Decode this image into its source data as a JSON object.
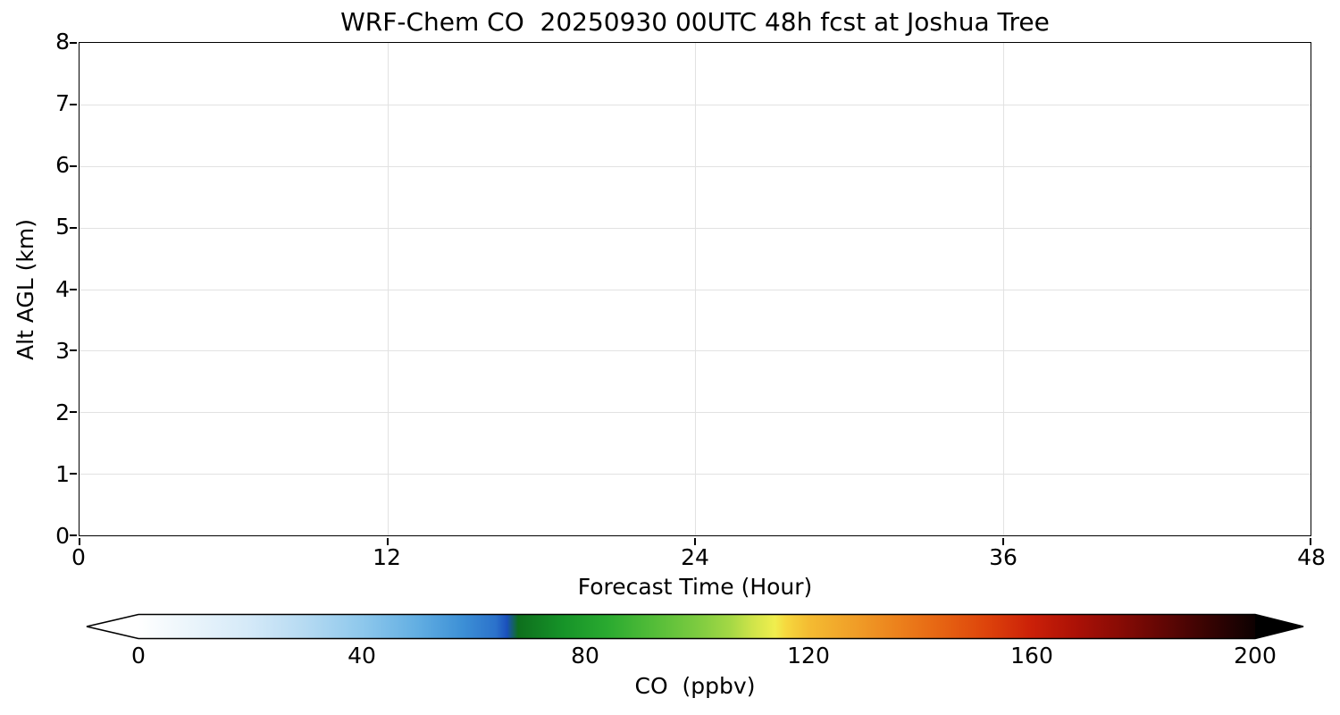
{
  "figure": {
    "background": "#ffffff",
    "text_color": "#000000"
  },
  "chart_data": {
    "type": "heatmap",
    "title": "WRF-Chem CO  20250930 00UTC 48h fcst at Joshua Tree",
    "xlabel": "Forecast Time (Hour)",
    "ylabel": "Alt AGL (km)",
    "xlim": [
      0,
      48
    ],
    "ylim": [
      0,
      8
    ],
    "x_ticks": [
      0,
      12,
      24,
      36,
      48
    ],
    "y_ticks": [
      0,
      1,
      2,
      3,
      4,
      5,
      6,
      7,
      8
    ],
    "grid": true,
    "grid_color": "#e2e2e2",
    "series": [],
    "plot_area_content": "empty (no CO contour values rendered in plot area)",
    "colorbar": {
      "label": "CO  (ppbv)",
      "ticks": [
        0,
        40,
        80,
        120,
        160,
        200
      ],
      "value_range": [
        0,
        200
      ],
      "orientation": "horizontal",
      "extend": "both",
      "extend_colors": {
        "under": "#ffffff",
        "over": "#000000"
      },
      "gradient": [
        {
          "offset": "0%",
          "color": "#ffffff"
        },
        {
          "offset": "5%",
          "color": "#e9f4fb"
        },
        {
          "offset": "10%",
          "color": "#d4e9f8"
        },
        {
          "offset": "15%",
          "color": "#b5daf2"
        },
        {
          "offset": "20%",
          "color": "#8ec8ec"
        },
        {
          "offset": "25%",
          "color": "#62aee2"
        },
        {
          "offset": "29%",
          "color": "#3d90d6"
        },
        {
          "offset": "32%",
          "color": "#2b72cb"
        },
        {
          "offset": "33%",
          "color": "#1b50bc"
        },
        {
          "offset": "34%",
          "color": "#0e6f1d"
        },
        {
          "offset": "38%",
          "color": "#169328"
        },
        {
          "offset": "42%",
          "color": "#2aaa30"
        },
        {
          "offset": "46%",
          "color": "#52bc38"
        },
        {
          "offset": "50%",
          "color": "#7ccb40"
        },
        {
          "offset": "53%",
          "color": "#a4d845"
        },
        {
          "offset": "55%",
          "color": "#cfe44a"
        },
        {
          "offset": "57%",
          "color": "#f0ee4e"
        },
        {
          "offset": "58%",
          "color": "#f6d83e"
        },
        {
          "offset": "60%",
          "color": "#f4bc32"
        },
        {
          "offset": "64%",
          "color": "#f09f28"
        },
        {
          "offset": "68%",
          "color": "#ec811c"
        },
        {
          "offset": "72%",
          "color": "#e66312"
        },
        {
          "offset": "76%",
          "color": "#dd430b"
        },
        {
          "offset": "80%",
          "color": "#cb2008"
        },
        {
          "offset": "84%",
          "color": "#ab1106"
        },
        {
          "offset": "88%",
          "color": "#870b05"
        },
        {
          "offset": "92%",
          "color": "#5f0604"
        },
        {
          "offset": "96%",
          "color": "#350302"
        },
        {
          "offset": "100%",
          "color": "#0d0101"
        }
      ]
    }
  }
}
